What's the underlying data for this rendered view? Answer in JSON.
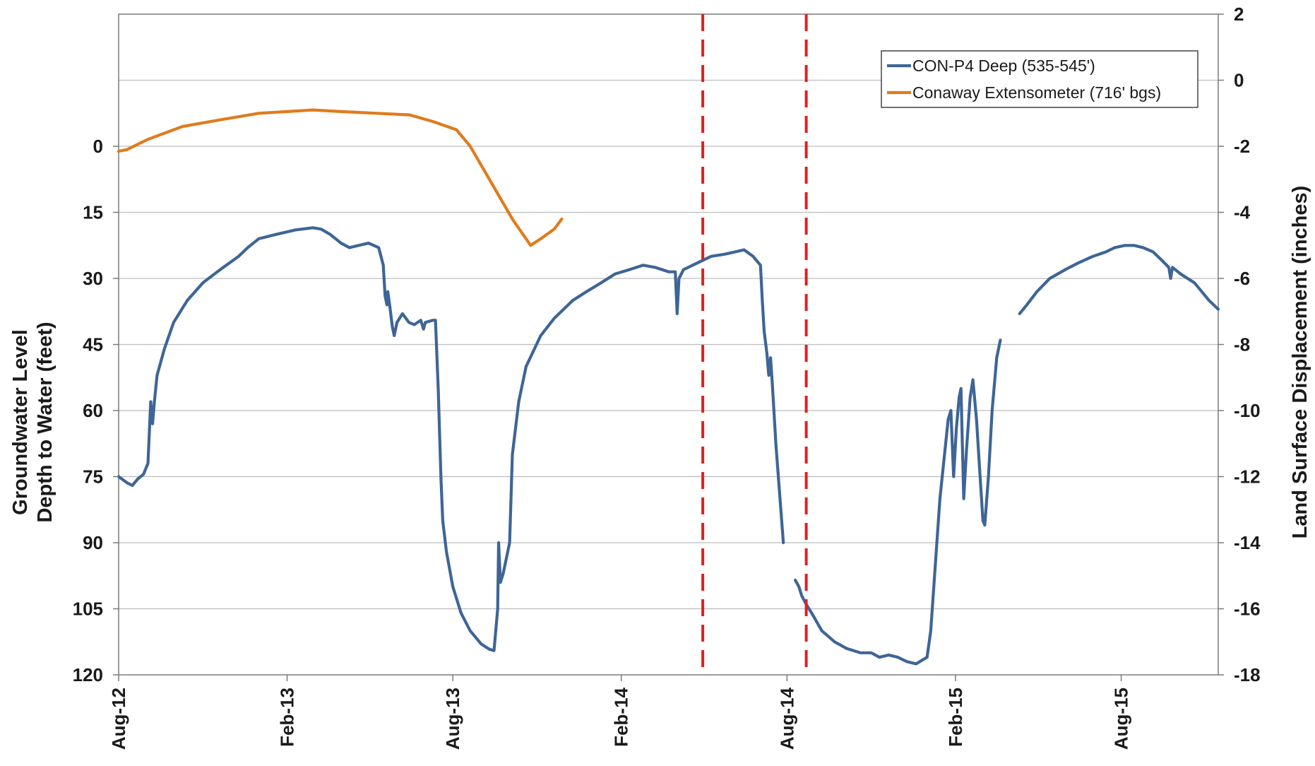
{
  "chart_data": {
    "type": "line",
    "title": "",
    "x_axis": {
      "type": "date",
      "min": "2012-08-01",
      "max": "2015-11-15",
      "ticks": [
        {
          "date": "2012-08-01",
          "label": "Aug-12"
        },
        {
          "date": "2013-02-01",
          "label": "Feb-13"
        },
        {
          "date": "2013-08-01",
          "label": "Aug-13"
        },
        {
          "date": "2014-02-01",
          "label": "Feb-14"
        },
        {
          "date": "2014-08-01",
          "label": "Aug-14"
        },
        {
          "date": "2015-02-01",
          "label": "Feb-15"
        },
        {
          "date": "2015-08-01",
          "label": "Aug-15"
        }
      ]
    },
    "y_left": {
      "title_lines": [
        "Groundwater Level",
        "Depth to Water (feet)"
      ],
      "min": -30,
      "max": 120,
      "inverted": true,
      "ticks": [
        0,
        15,
        30,
        45,
        60,
        75,
        90,
        105,
        120
      ]
    },
    "y_right": {
      "title": "Land Surface Displacement (inches)",
      "min": -18,
      "max": 2,
      "ticks": [
        2,
        0,
        -2,
        -4,
        -6,
        -8,
        -10,
        -12,
        -14,
        -16,
        -18
      ]
    },
    "grid": true,
    "legend_position": "top-right",
    "vertical_markers": [
      {
        "date": "2014-05-01",
        "color": "#e02020",
        "style": "dashed"
      },
      {
        "date": "2014-08-22",
        "color": "#e02020",
        "style": "dashed"
      }
    ],
    "series": [
      {
        "name": "CON-P4 Deep (535-545')",
        "axis": "left",
        "color": "#3e6596",
        "segments": [
          [
            [
              "2012-08-01",
              75
            ],
            [
              "2012-08-11",
              76.5
            ],
            [
              "2012-08-16",
              77
            ],
            [
              "2012-08-22",
              75.5
            ],
            [
              "2012-08-28",
              74.5
            ],
            [
              "2012-09-02",
              72
            ],
            [
              "2012-09-05",
              58
            ],
            [
              "2012-09-07",
              63
            ],
            [
              "2012-09-09",
              58
            ],
            [
              "2012-09-12",
              52
            ],
            [
              "2012-09-20",
              46
            ],
            [
              "2012-09-30",
              40
            ],
            [
              "2012-10-15",
              35
            ],
            [
              "2012-11-01",
              31
            ],
            [
              "2012-11-20",
              28
            ],
            [
              "2012-12-10",
              25
            ],
            [
              "2012-12-20",
              23
            ],
            [
              "2013-01-01",
              21
            ],
            [
              "2013-01-20",
              20
            ],
            [
              "2013-02-10",
              19
            ],
            [
              "2013-03-01",
              18.5
            ],
            [
              "2013-03-10",
              18.8
            ],
            [
              "2013-03-20",
              20
            ],
            [
              "2013-04-01",
              22
            ],
            [
              "2013-04-10",
              23
            ],
            [
              "2013-04-20",
              22.5
            ],
            [
              "2013-05-01",
              22
            ],
            [
              "2013-05-12",
              23
            ],
            [
              "2013-05-17",
              27
            ],
            [
              "2013-05-19",
              34
            ],
            [
              "2013-05-21",
              36
            ],
            [
              "2013-05-22",
              33
            ],
            [
              "2013-05-24",
              36
            ],
            [
              "2013-05-27",
              41
            ],
            [
              "2013-05-29",
              43
            ],
            [
              "2013-06-01",
              40
            ],
            [
              "2013-06-07",
              38
            ],
            [
              "2013-06-14",
              40
            ],
            [
              "2013-06-20",
              40.5
            ],
            [
              "2013-06-27",
              39.5
            ],
            [
              "2013-06-30",
              41.5
            ],
            [
              "2013-07-02",
              40
            ],
            [
              "2013-07-10",
              39.5
            ],
            [
              "2013-07-13",
              39.5
            ],
            [
              "2013-07-16",
              55
            ],
            [
              "2013-07-19",
              75
            ],
            [
              "2013-07-21",
              85
            ],
            [
              "2013-07-25",
              92
            ],
            [
              "2013-08-01",
              100
            ],
            [
              "2013-08-10",
              106
            ],
            [
              "2013-08-20",
              110
            ],
            [
              "2013-09-01",
              113
            ],
            [
              "2013-09-10",
              114.2
            ],
            [
              "2013-09-15",
              114.5
            ],
            [
              "2013-09-19",
              105
            ],
            [
              "2013-09-20",
              90
            ],
            [
              "2013-09-22",
              99
            ],
            [
              "2013-09-25",
              97
            ],
            [
              "2013-10-02",
              90
            ],
            [
              "2013-10-05",
              70
            ],
            [
              "2013-10-12",
              58
            ],
            [
              "2013-10-20",
              50
            ],
            [
              "2013-11-05",
              43
            ],
            [
              "2013-11-20",
              39
            ],
            [
              "2013-12-10",
              35
            ],
            [
              "2013-12-25",
              33
            ],
            [
              "2014-01-10",
              31
            ],
            [
              "2014-01-25",
              29
            ],
            [
              "2014-02-10",
              28
            ],
            [
              "2014-02-25",
              27
            ],
            [
              "2014-03-10",
              27.5
            ],
            [
              "2014-03-25",
              28.5
            ],
            [
              "2014-04-01",
              28.5
            ],
            [
              "2014-04-03",
              38
            ],
            [
              "2014-04-05",
              30
            ],
            [
              "2014-04-10",
              28
            ],
            [
              "2014-04-25",
              26.5
            ],
            [
              "2014-05-10",
              25
            ],
            [
              "2014-05-25",
              24.5
            ],
            [
              "2014-06-05",
              24
            ],
            [
              "2014-06-15",
              23.5
            ],
            [
              "2014-06-25",
              25
            ],
            [
              "2014-07-03",
              27
            ],
            [
              "2014-07-05",
              35
            ],
            [
              "2014-07-07",
              42
            ],
            [
              "2014-07-10",
              47
            ],
            [
              "2014-07-12",
              52
            ],
            [
              "2014-07-14",
              48
            ],
            [
              "2014-07-16",
              54
            ],
            [
              "2014-07-20",
              68
            ],
            [
              "2014-07-28",
              90
            ]
          ],
          [
            [
              "2014-08-10",
              98.5
            ],
            [
              "2014-08-14",
              100
            ],
            [
              "2014-08-17",
              102
            ],
            [
              "2014-08-22",
              104
            ],
            [
              "2014-08-28",
              106
            ],
            [
              "2014-09-08",
              110
            ],
            [
              "2014-09-22",
              112.5
            ],
            [
              "2014-10-05",
              114
            ],
            [
              "2014-10-20",
              115
            ],
            [
              "2014-11-01",
              115
            ],
            [
              "2014-11-10",
              116
            ],
            [
              "2014-11-20",
              115.5
            ],
            [
              "2014-11-30",
              116
            ],
            [
              "2014-12-10",
              117
            ],
            [
              "2014-12-20",
              117.5
            ],
            [
              "2015-01-01",
              116
            ],
            [
              "2015-01-05",
              110
            ],
            [
              "2015-01-10",
              95
            ],
            [
              "2015-01-15",
              80
            ],
            [
              "2015-01-20",
              70
            ],
            [
              "2015-01-24",
              62
            ],
            [
              "2015-01-27",
              60
            ],
            [
              "2015-01-30",
              75
            ],
            [
              "2015-02-02",
              64
            ],
            [
              "2015-02-05",
              57
            ],
            [
              "2015-02-07",
              55
            ],
            [
              "2015-02-10",
              80
            ],
            [
              "2015-02-13",
              69
            ],
            [
              "2015-02-17",
              57
            ],
            [
              "2015-02-20",
              53
            ],
            [
              "2015-02-24",
              62
            ],
            [
              "2015-02-27",
              72
            ],
            [
              "2015-03-03",
              85
            ],
            [
              "2015-03-05",
              86
            ],
            [
              "2015-03-09",
              75
            ],
            [
              "2015-03-13",
              60
            ],
            [
              "2015-03-18",
              48
            ],
            [
              "2015-03-22",
              44
            ]
          ],
          [
            [
              "2015-04-12",
              38
            ],
            [
              "2015-04-20",
              36
            ],
            [
              "2015-05-01",
              33
            ],
            [
              "2015-05-15",
              30
            ],
            [
              "2015-06-01",
              28
            ],
            [
              "2015-06-15",
              26.5
            ],
            [
              "2015-07-01",
              25
            ],
            [
              "2015-07-15",
              24
            ],
            [
              "2015-07-25",
              23
            ],
            [
              "2015-08-05",
              22.5
            ],
            [
              "2015-08-15",
              22.5
            ],
            [
              "2015-08-25",
              23
            ],
            [
              "2015-09-05",
              24
            ],
            [
              "2015-09-15",
              26
            ],
            [
              "2015-09-22",
              27.5
            ],
            [
              "2015-09-24",
              30
            ],
            [
              "2015-09-26",
              27.5
            ],
            [
              "2015-10-05",
              29
            ],
            [
              "2015-10-20",
              31
            ],
            [
              "2015-11-05",
              35
            ],
            [
              "2015-11-15",
              37
            ]
          ]
        ]
      },
      {
        "name": "Conaway Extensometer (716' bgs)",
        "axis": "right",
        "color": "#e07b1c",
        "segments": [
          [
            [
              "2012-08-01",
              -2.15
            ],
            [
              "2012-08-10",
              -2.1
            ],
            [
              "2012-09-01",
              -1.8
            ],
            [
              "2012-10-10",
              -1.4
            ],
            [
              "2012-11-20",
              -1.2
            ],
            [
              "2013-01-01",
              -1.0
            ],
            [
              "2013-02-01",
              -0.95
            ],
            [
              "2013-03-01",
              -0.9
            ],
            [
              "2013-04-01",
              -0.95
            ],
            [
              "2013-05-10",
              -1.0
            ],
            [
              "2013-06-15",
              -1.05
            ],
            [
              "2013-07-10",
              -1.25
            ],
            [
              "2013-08-05",
              -1.5
            ],
            [
              "2013-08-20",
              -2.0
            ],
            [
              "2013-09-10",
              -3.0
            ],
            [
              "2013-10-05",
              -4.2
            ],
            [
              "2013-10-25",
              -5.0
            ],
            [
              "2013-11-05",
              -4.8
            ],
            [
              "2013-11-20",
              -4.5
            ],
            [
              "2013-11-28",
              -4.2
            ]
          ]
        ]
      }
    ]
  },
  "legend": {
    "items": [
      {
        "label": "CON-P4 Deep (535-545')",
        "color": "#3e6596"
      },
      {
        "label": "Conaway Extensometer (716' bgs)",
        "color": "#e07b1c"
      }
    ]
  }
}
